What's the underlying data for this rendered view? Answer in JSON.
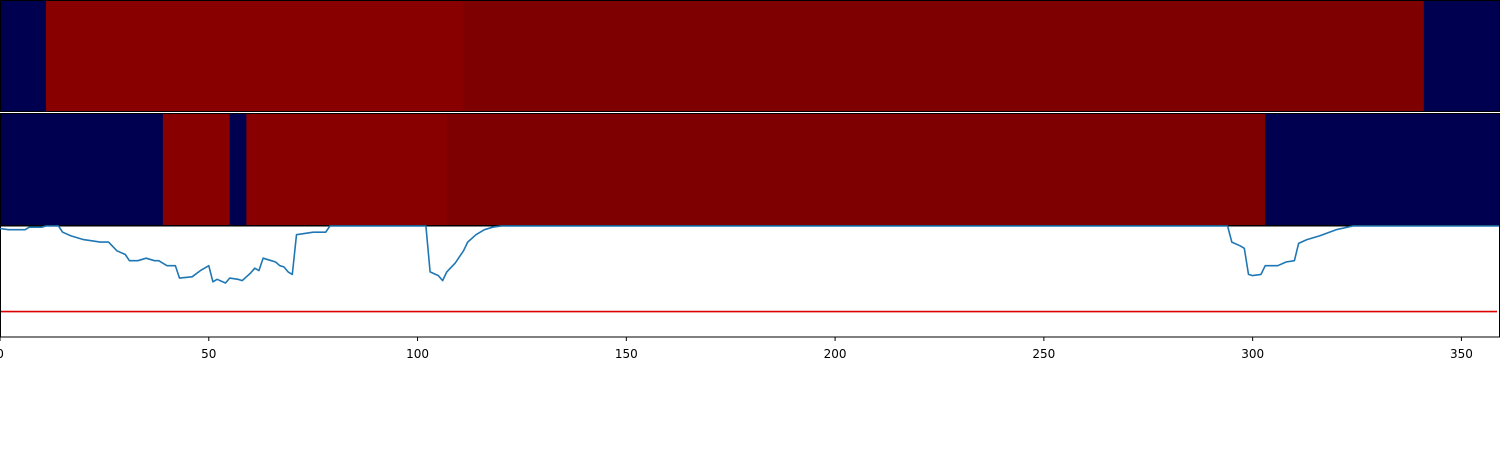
{
  "chart_data": {
    "type": "heatmap",
    "x_ticks": [
      "0",
      "50",
      "100",
      "150",
      "200",
      "250",
      "300",
      "350"
    ],
    "x_tick_values": [
      0,
      50,
      100,
      150,
      200,
      250,
      300,
      350
    ],
    "xlim": [
      0,
      359
    ],
    "colors": {
      "low": "#000050",
      "high_bright": "#880000",
      "high_dark": "#7f0000",
      "line": "#1f77b4",
      "threshold": "#dd0000"
    },
    "strips": [
      {
        "segments": [
          {
            "start": 0,
            "end": 11,
            "level": "low"
          },
          {
            "start": 11,
            "end": 111,
            "level": "high_bright"
          },
          {
            "start": 111,
            "end": 341,
            "level": "high_dark"
          },
          {
            "start": 341,
            "end": 359,
            "level": "low"
          }
        ]
      },
      {
        "segments": [
          {
            "start": 0,
            "end": 39,
            "level": "low"
          },
          {
            "start": 39,
            "end": 55,
            "level": "high_bright"
          },
          {
            "start": 55,
            "end": 59,
            "level": "low"
          },
          {
            "start": 59,
            "end": 107,
            "level": "high_bright"
          },
          {
            "start": 107,
            "end": 303,
            "level": "high_dark"
          },
          {
            "start": 303,
            "end": 359,
            "level": "low"
          }
        ]
      }
    ],
    "line_series": {
      "ylim": [
        0,
        1
      ],
      "threshold": 0.31,
      "points": [
        [
          0,
          0.98
        ],
        [
          2,
          0.97
        ],
        [
          6,
          0.97
        ],
        [
          7,
          0.99
        ],
        [
          10,
          0.99
        ],
        [
          11,
          1.0
        ],
        [
          14,
          1.0
        ],
        [
          15,
          0.95
        ],
        [
          17,
          0.92
        ],
        [
          20,
          0.89
        ],
        [
          24,
          0.87
        ],
        [
          26,
          0.87
        ],
        [
          28,
          0.8
        ],
        [
          30,
          0.77
        ],
        [
          31,
          0.72
        ],
        [
          33,
          0.72
        ],
        [
          35,
          0.74
        ],
        [
          37,
          0.72
        ],
        [
          38,
          0.72
        ],
        [
          40,
          0.68
        ],
        [
          42,
          0.68
        ],
        [
          43,
          0.58
        ],
        [
          46,
          0.59
        ],
        [
          48,
          0.64
        ],
        [
          50,
          0.68
        ],
        [
          51,
          0.55
        ],
        [
          52,
          0.57
        ],
        [
          54,
          0.54
        ],
        [
          55,
          0.58
        ],
        [
          57,
          0.57
        ],
        [
          58,
          0.56
        ],
        [
          59,
          0.59
        ],
        [
          60,
          0.62
        ],
        [
          61,
          0.66
        ],
        [
          62,
          0.64
        ],
        [
          63,
          0.74
        ],
        [
          65,
          0.72
        ],
        [
          66,
          0.71
        ],
        [
          67,
          0.68
        ],
        [
          68,
          0.67
        ],
        [
          69,
          0.63
        ],
        [
          70,
          0.61
        ],
        [
          71,
          0.93
        ],
        [
          75,
          0.95
        ],
        [
          78,
          0.95
        ],
        [
          79,
          1.0
        ],
        [
          85,
          1.0
        ],
        [
          98,
          1.0
        ],
        [
          102,
          1.0
        ],
        [
          103,
          0.63
        ],
        [
          105,
          0.6
        ],
        [
          106,
          0.56
        ],
        [
          107,
          0.63
        ],
        [
          109,
          0.7
        ],
        [
          111,
          0.8
        ],
        [
          112,
          0.87
        ],
        [
          114,
          0.93
        ],
        [
          116,
          0.97
        ],
        [
          118,
          0.99
        ],
        [
          120,
          1.0
        ],
        [
          200,
          1.0
        ],
        [
          290,
          1.0
        ],
        [
          294,
          1.0
        ],
        [
          295,
          0.87
        ],
        [
          297,
          0.84
        ],
        [
          298,
          0.82
        ],
        [
          299,
          0.61
        ],
        [
          300,
          0.6
        ],
        [
          302,
          0.61
        ],
        [
          303,
          0.68
        ],
        [
          306,
          0.68
        ],
        [
          308,
          0.71
        ],
        [
          310,
          0.72
        ],
        [
          311,
          0.86
        ],
        [
          313,
          0.89
        ],
        [
          316,
          0.92
        ],
        [
          320,
          0.97
        ],
        [
          324,
          1.0
        ],
        [
          359,
          1.0
        ]
      ]
    }
  }
}
